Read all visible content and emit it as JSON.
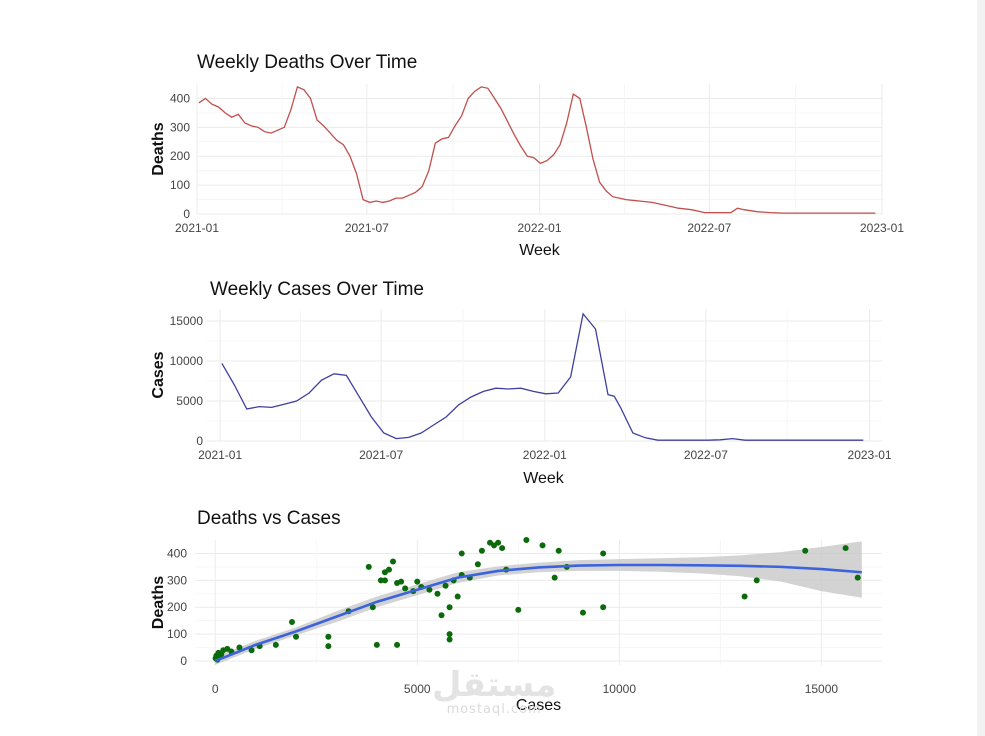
{
  "watermark": {
    "arabic": "مستقل",
    "latin": "mostaql.com"
  },
  "colors": {
    "deaths_line": "#c0504d",
    "cases_line": "#3f3f9f",
    "points": "#0b6b0b",
    "smooth": "#3d63dc",
    "ribbon": "#c8c8c8",
    "grid": "#ebebeb"
  },
  "chart_data": [
    {
      "type": "line",
      "title": "Weekly Deaths Over Time",
      "xlabel": "Week",
      "ylabel": "Deaths",
      "x_ticks": [
        "2021-01",
        "2021-07",
        "2022-01",
        "2022-07",
        "2023-01"
      ],
      "y_ticks": [
        0,
        100,
        200,
        300,
        400
      ],
      "xlim": [
        "2021-01-01",
        "2023-01-01"
      ],
      "ylim": [
        0,
        450
      ],
      "grid": true,
      "series": [
        {
          "x": [
            "2021-01-03",
            "2021-01-10",
            "2021-01-17",
            "2021-01-24",
            "2021-01-31",
            "2021-02-07",
            "2021-02-14",
            "2021-02-21",
            "2021-02-28",
            "2021-03-07",
            "2021-03-14",
            "2021-03-21",
            "2021-03-28",
            "2021-04-04",
            "2021-04-11",
            "2021-04-18",
            "2021-04-25",
            "2021-05-02",
            "2021-05-09",
            "2021-05-16",
            "2021-05-23",
            "2021-05-30",
            "2021-06-06",
            "2021-06-13",
            "2021-06-20",
            "2021-06-27",
            "2021-07-04",
            "2021-07-11",
            "2021-07-18",
            "2021-07-25",
            "2021-08-01",
            "2021-08-08",
            "2021-08-15",
            "2021-08-22",
            "2021-08-29",
            "2021-09-05",
            "2021-09-12",
            "2021-09-19",
            "2021-09-26",
            "2021-10-03",
            "2021-10-10",
            "2021-10-17",
            "2021-10-24",
            "2021-10-31",
            "2021-11-07",
            "2021-11-14",
            "2021-11-21",
            "2021-11-28",
            "2021-12-05",
            "2021-12-12",
            "2021-12-19",
            "2021-12-26",
            "2022-01-02",
            "2022-01-09",
            "2022-01-16",
            "2022-01-23",
            "2022-01-30",
            "2022-02-06",
            "2022-02-13",
            "2022-02-20",
            "2022-02-27",
            "2022-03-06",
            "2022-03-13",
            "2022-03-20",
            "2022-03-27",
            "2022-04-03",
            "2022-04-17",
            "2022-05-01",
            "2022-05-15",
            "2022-05-29",
            "2022-06-12",
            "2022-06-26",
            "2022-07-10",
            "2022-07-24",
            "2022-07-31",
            "2022-08-07",
            "2022-08-21",
            "2022-09-04",
            "2022-09-18",
            "2022-10-02",
            "2022-10-16",
            "2022-11-06",
            "2022-11-27",
            "2022-12-18",
            "2022-12-25"
          ],
          "y": [
            385,
            400,
            380,
            370,
            350,
            335,
            345,
            315,
            305,
            300,
            285,
            280,
            290,
            300,
            360,
            440,
            430,
            400,
            325,
            305,
            280,
            255,
            240,
            200,
            140,
            50,
            40,
            45,
            40,
            45,
            55,
            55,
            65,
            75,
            95,
            150,
            245,
            260,
            265,
            305,
            340,
            400,
            425,
            440,
            435,
            400,
            365,
            320,
            275,
            235,
            200,
            195,
            175,
            185,
            205,
            240,
            315,
            415,
            400,
            300,
            190,
            110,
            80,
            60,
            55,
            50,
            45,
            40,
            30,
            20,
            15,
            5,
            5,
            5,
            20,
            15,
            8,
            5,
            3,
            3,
            3,
            3,
            3,
            3,
            3
          ]
        }
      ]
    },
    {
      "type": "line",
      "title": "Weekly Cases Over Time",
      "xlabel": "Week",
      "ylabel": "Cases",
      "x_ticks": [
        "2021-01",
        "2021-07",
        "2022-01",
        "2022-07",
        "2023-01"
      ],
      "y_ticks": [
        0,
        5000,
        10000,
        15000
      ],
      "xlim": [
        "2020-12-15",
        "2023-01-15"
      ],
      "ylim": [
        0,
        16500
      ],
      "grid": true,
      "series": [
        {
          "x": [
            "2021-01-03",
            "2021-01-17",
            "2021-01-31",
            "2021-02-14",
            "2021-02-28",
            "2021-03-14",
            "2021-03-28",
            "2021-04-11",
            "2021-04-25",
            "2021-05-09",
            "2021-05-23",
            "2021-06-06",
            "2021-06-20",
            "2021-07-04",
            "2021-07-18",
            "2021-08-01",
            "2021-08-15",
            "2021-08-29",
            "2021-09-12",
            "2021-09-26",
            "2021-10-10",
            "2021-10-24",
            "2021-11-07",
            "2021-11-21",
            "2021-12-05",
            "2021-12-19",
            "2022-01-02",
            "2022-01-16",
            "2022-01-30",
            "2022-02-13",
            "2022-02-27",
            "2022-03-13",
            "2022-03-20",
            "2022-03-27",
            "2022-04-10",
            "2022-04-24",
            "2022-05-08",
            "2022-05-22",
            "2022-06-05",
            "2022-06-19",
            "2022-07-03",
            "2022-07-17",
            "2022-07-31",
            "2022-08-14",
            "2022-09-04",
            "2022-10-02",
            "2022-11-06",
            "2022-12-04",
            "2022-12-25"
          ],
          "y": [
            9700,
            7000,
            4000,
            4300,
            4200,
            4600,
            5000,
            6000,
            7600,
            8400,
            8200,
            5600,
            3000,
            1000,
            300,
            450,
            1000,
            2000,
            3000,
            4500,
            5500,
            6200,
            6600,
            6500,
            6600,
            6200,
            5900,
            6000,
            8000,
            15900,
            14000,
            5800,
            5600,
            4200,
            1000,
            400,
            100,
            100,
            100,
            100,
            100,
            150,
            300,
            100,
            100,
            100,
            100,
            100,
            100
          ]
        }
      ]
    },
    {
      "type": "scatter",
      "title": "Deaths vs Cases",
      "xlabel": "Cases",
      "ylabel": "Deaths",
      "x_ticks": [
        0,
        5000,
        10000,
        15000
      ],
      "y_ticks": [
        0,
        100,
        200,
        300,
        400
      ],
      "xlim": [
        -500,
        16500
      ],
      "ylim": [
        -15,
        450
      ],
      "grid": true,
      "points": [
        [
          10,
          10
        ],
        [
          30,
          20
        ],
        [
          50,
          5
        ],
        [
          80,
          30
        ],
        [
          100,
          15
        ],
        [
          150,
          25
        ],
        [
          200,
          40
        ],
        [
          300,
          45
        ],
        [
          400,
          35
        ],
        [
          600,
          50
        ],
        [
          900,
          40
        ],
        [
          1100,
          55
        ],
        [
          1500,
          60
        ],
        [
          1900,
          145
        ],
        [
          2000,
          90
        ],
        [
          2800,
          90
        ],
        [
          2800,
          55
        ],
        [
          3300,
          185
        ],
        [
          3800,
          350
        ],
        [
          3900,
          200
        ],
        [
          4000,
          60
        ],
        [
          4100,
          300
        ],
        [
          4200,
          330
        ],
        [
          4200,
          300
        ],
        [
          4300,
          340
        ],
        [
          4400,
          370
        ],
        [
          4500,
          290
        ],
        [
          4500,
          60
        ],
        [
          4600,
          295
        ],
        [
          4700,
          270
        ],
        [
          4900,
          260
        ],
        [
          5000,
          295
        ],
        [
          5100,
          275
        ],
        [
          5300,
          265
        ],
        [
          5500,
          250
        ],
        [
          5600,
          170
        ],
        [
          5700,
          280
        ],
        [
          5800,
          200
        ],
        [
          5800,
          100
        ],
        [
          5800,
          80
        ],
        [
          5900,
          300
        ],
        [
          6000,
          240
        ],
        [
          6100,
          320
        ],
        [
          6100,
          400
        ],
        [
          6300,
          310
        ],
        [
          6500,
          360
        ],
        [
          6600,
          410
        ],
        [
          6800,
          440
        ],
        [
          6900,
          430
        ],
        [
          7000,
          440
        ],
        [
          7100,
          420
        ],
        [
          7200,
          340
        ],
        [
          7500,
          190
        ],
        [
          7700,
          450
        ],
        [
          8100,
          430
        ],
        [
          8400,
          310
        ],
        [
          8500,
          410
        ],
        [
          8700,
          350
        ],
        [
          9100,
          180
        ],
        [
          9600,
          200
        ],
        [
          9600,
          400
        ],
        [
          13100,
          240
        ],
        [
          13400,
          300
        ],
        [
          14600,
          410
        ],
        [
          15600,
          420
        ],
        [
          15900,
          310
        ]
      ],
      "smooth": {
        "x": [
          0,
          500,
          1000,
          2000,
          3000,
          4000,
          5000,
          6000,
          7000,
          8000,
          9000,
          10000,
          11000,
          12000,
          13000,
          14000,
          15000,
          16000
        ],
        "y": [
          0,
          30,
          60,
          110,
          165,
          220,
          265,
          310,
          335,
          348,
          355,
          357,
          357,
          356,
          354,
          350,
          342,
          330
        ],
        "lower": [
          -15,
          15,
          45,
          95,
          145,
          200,
          245,
          290,
          318,
          330,
          335,
          335,
          332,
          326,
          315,
          295,
          260,
          235
        ],
        "upper": [
          15,
          45,
          75,
          125,
          185,
          240,
          285,
          330,
          352,
          366,
          375,
          379,
          382,
          386,
          393,
          405,
          424,
          445
        ]
      }
    }
  ]
}
